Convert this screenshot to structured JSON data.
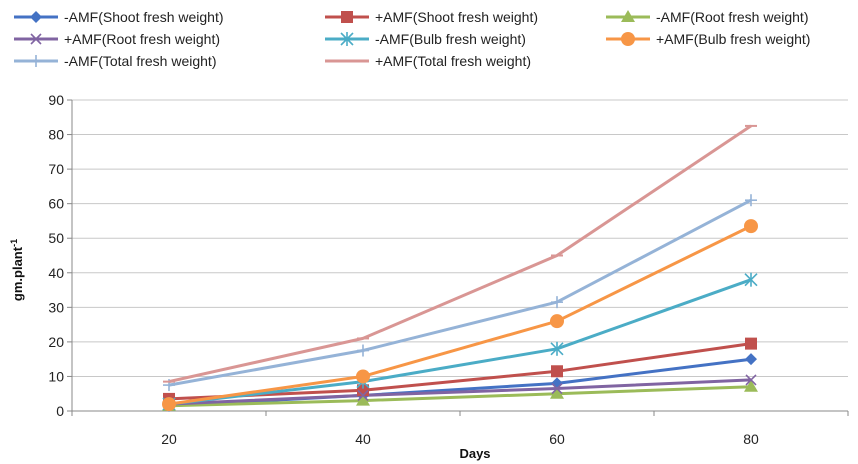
{
  "chart_data": {
    "type": "line",
    "x": [
      20,
      40,
      60,
      80
    ],
    "xlabel": "Days",
    "ylabel_main": "gm.plant",
    "ylabel_sup": "-1",
    "ylim": [
      0,
      90
    ],
    "yticks": [
      0,
      10,
      20,
      30,
      40,
      50,
      60,
      70,
      80,
      90
    ],
    "grid": "horizontal",
    "legend_position": "top",
    "series": [
      {
        "name": "-AMF(Shoot fresh weight)",
        "color": "#4472C4",
        "marker": "diamond",
        "values": [
          1.5,
          4.5,
          8,
          15
        ]
      },
      {
        "name": "+AMF(Shoot fresh weight)",
        "color": "#C0504D",
        "marker": "square",
        "values": [
          3.5,
          6,
          11.5,
          19.5
        ]
      },
      {
        "name": "-AMF(Root fresh weight)",
        "color": "#9BBB59",
        "marker": "triangle",
        "values": [
          1.5,
          3,
          5,
          7
        ]
      },
      {
        "name": "+AMF(Root fresh weight)",
        "color": "#8064A2",
        "marker": "x",
        "values": [
          2,
          4.5,
          6.5,
          9
        ]
      },
      {
        "name": "-AMF(Bulb  fresh weight)",
        "color": "#4BACC6",
        "marker": "star",
        "values": [
          2,
          8.5,
          18,
          38
        ]
      },
      {
        "name": "+AMF(Bulb fresh weight)",
        "color": "#F79646",
        "marker": "circle",
        "values": [
          2,
          10,
          26,
          53.5
        ]
      },
      {
        "name": "-AMF(Total fresh weight)",
        "color": "#95B3D7",
        "marker": "plus",
        "values": [
          7.5,
          17.5,
          31.5,
          61
        ]
      },
      {
        "name": "+AMF(Total  fresh weight)",
        "color": "#D99694",
        "marker": "dash",
        "values": [
          8.5,
          21,
          45,
          82.5
        ]
      }
    ]
  }
}
